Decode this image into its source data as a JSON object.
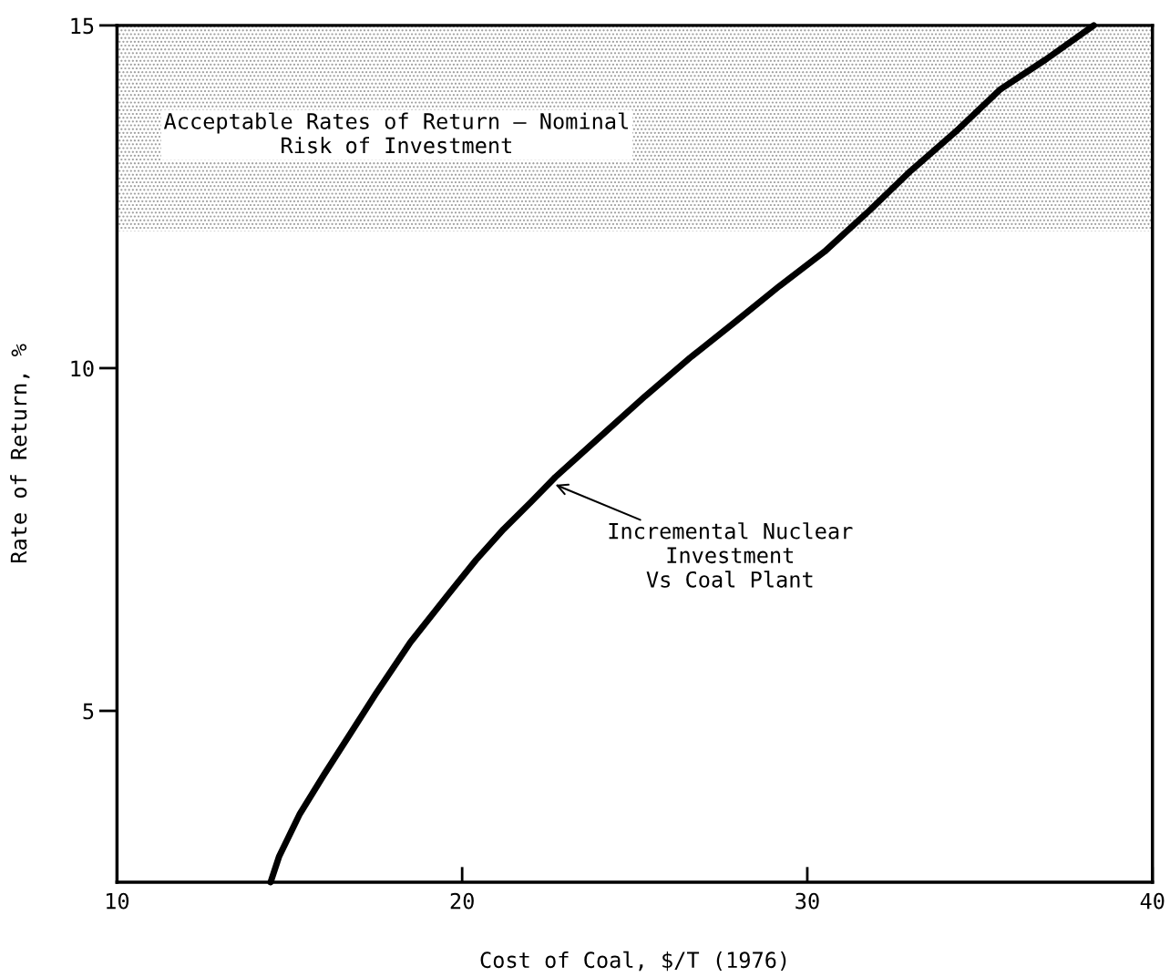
{
  "chart_data": {
    "type": "line",
    "xlabel": "Cost of Coal, $/T (1976)",
    "ylabel": "Rate of Return, %",
    "x": [
      14.45,
      14.7,
      15.3,
      16.0,
      16.8,
      17.5,
      18.5,
      19.6,
      20.4,
      21.2,
      22.0,
      22.7,
      24.0,
      25.3,
      26.6,
      27.9,
      29.2,
      30.5,
      31.8,
      33.0,
      34.3,
      35.6,
      36.9,
      38.3
    ],
    "series": [
      {
        "color": "#000000",
        "values": [
          2.5,
          2.88,
          3.5,
          4.07,
          4.7,
          5.25,
          6.0,
          6.7,
          7.2,
          7.65,
          8.05,
          8.41,
          9.0,
          9.59,
          10.15,
          10.67,
          11.2,
          11.7,
          12.3,
          12.88,
          13.45,
          14.07,
          14.5,
          15.0
        ]
      }
    ],
    "xlim": [
      10,
      40
    ],
    "xticks": [
      10,
      20,
      30,
      40
    ],
    "ylim": [
      2.5,
      15
    ],
    "yticks": [
      5,
      10,
      15
    ],
    "bands": [
      {
        "axis": "y",
        "from": 12,
        "to": 15,
        "label": "Acceptable Rates of Return — Nominal\nRisk of Investment",
        "color": "#9a9a9a"
      }
    ],
    "annotations": [
      {
        "text": "Incremental Nuclear\nInvestment\nVs Coal Plant",
        "x": 22.7,
        "y": 8.3
      }
    ],
    "marker": "none",
    "line_style": "solid",
    "grid": false
  }
}
